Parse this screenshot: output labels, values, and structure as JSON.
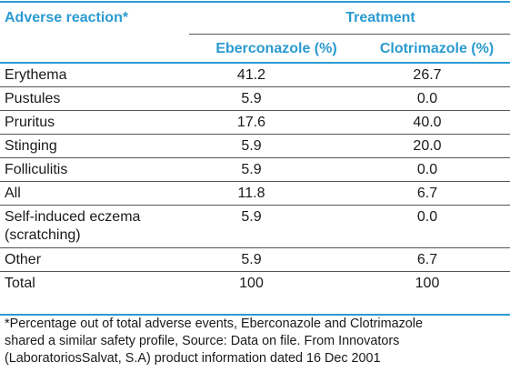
{
  "header": {
    "adverse_label": "Adverse reaction*",
    "treatment_label": "Treatment",
    "eberconazole_label": "Eberconazole (%)",
    "clotrimazole_label": "Clotrimazole (%)"
  },
  "rows": [
    {
      "label": "Erythema",
      "eberconazole": "41.2",
      "clotrimazole": "26.7"
    },
    {
      "label": "Pustules",
      "eberconazole": "5.9",
      "clotrimazole": "0.0"
    },
    {
      "label": "Pruritus",
      "eberconazole": "17.6",
      "clotrimazole": "40.0"
    },
    {
      "label": "Stinging",
      "eberconazole": "5.9",
      "clotrimazole": "20.0"
    },
    {
      "label": "Folliculitis",
      "eberconazole": "5.9",
      "clotrimazole": "0.0"
    },
    {
      "label": "All",
      "eberconazole": "11.8",
      "clotrimazole": "6.7"
    },
    {
      "label_line1": "Self-induced eczema",
      "label_line2": "(scratching)",
      "eberconazole": "5.9",
      "clotrimazole": "0.0"
    },
    {
      "label": "Other",
      "eberconazole": "5.9",
      "clotrimazole": "6.7"
    },
    {
      "label": "Total",
      "eberconazole": "100",
      "clotrimazole": "100"
    }
  ],
  "footnote": {
    "line1": "*Percentage out of total adverse events, Eberconazole and Clotrimazole",
    "line2": "shared a similar safety profile, Source: Data on file. From Innovators",
    "line3": "(LaboratoriosSalvat, S.A) product information dated 16 Dec 2001"
  },
  "colors": {
    "accent": "#2b9bd1",
    "text": "#1a1a1a",
    "rule": "#555555"
  }
}
